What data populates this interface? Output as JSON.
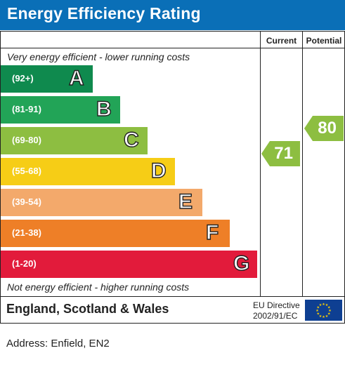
{
  "header": {
    "title": "Energy Efficiency Rating"
  },
  "columns": {
    "current": "Current",
    "potential": "Potential"
  },
  "captions": {
    "top": "Very energy efficient - lower running costs",
    "bottom": "Not energy efficient - higher running costs"
  },
  "chart_data": {
    "type": "bar",
    "title": "Energy Efficiency Rating",
    "categories": [
      "A",
      "B",
      "C",
      "D",
      "E",
      "F",
      "G"
    ],
    "ranges": [
      "(92+)",
      "(81-91)",
      "(69-80)",
      "(55-68)",
      "(39-54)",
      "(21-38)",
      "(1-20)"
    ],
    "colors": [
      "#0f8a4e",
      "#22a457",
      "#8dbe41",
      "#f6cd16",
      "#f3a96b",
      "#ee7f27",
      "#e21b3b"
    ],
    "current": {
      "value": 71,
      "band": "C",
      "color": "#8dbe41"
    },
    "potential": {
      "value": 80,
      "band": "C",
      "color": "#8dbe41"
    }
  },
  "footer": {
    "country": "England, Scotland & Wales",
    "directive_line1": "EU Directive",
    "directive_line2": "2002/91/EC",
    "flag_icon": "eu-flag-icon",
    "flag_color": "#0e3f92",
    "star_color": "#ffd200"
  },
  "address": "Address: Enfield, EN2"
}
